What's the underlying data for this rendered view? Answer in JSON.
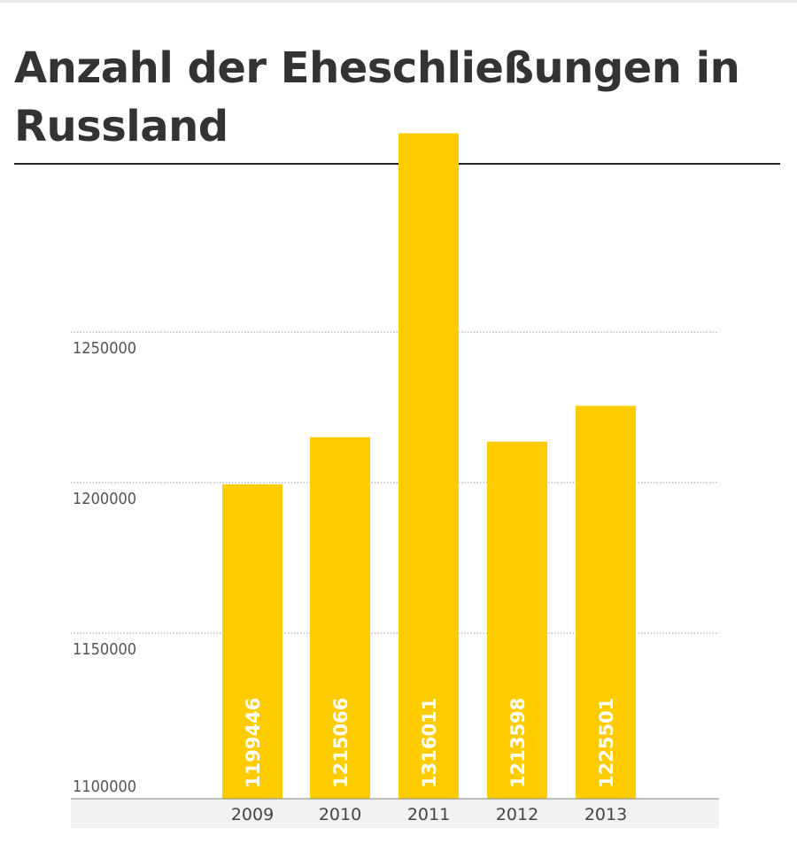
{
  "title": "Anzahl der Eheschließungen in Russland",
  "chart_data": {
    "type": "bar",
    "title": "Anzahl der Eheschließungen in Russland",
    "categories": [
      "2009",
      "2010",
      "2011",
      "2012",
      "2013"
    ],
    "values": [
      1199446,
      1215066,
      1316011,
      1213598,
      1225501
    ],
    "data_labels": [
      "1199446",
      "1215066",
      "1316011",
      "1213598",
      "1225501"
    ],
    "y_ticks": [
      1100000,
      1150000,
      1200000,
      1250000
    ],
    "y_tick_labels": [
      "1100000",
      "1150000",
      "1200000",
      "1250000"
    ],
    "xlabel": "",
    "ylabel": "",
    "grid": true,
    "legend": "none",
    "colors": {
      "bar": "#FFCC00",
      "axis_band": "#f2f2f2",
      "grid": "#999999"
    }
  }
}
